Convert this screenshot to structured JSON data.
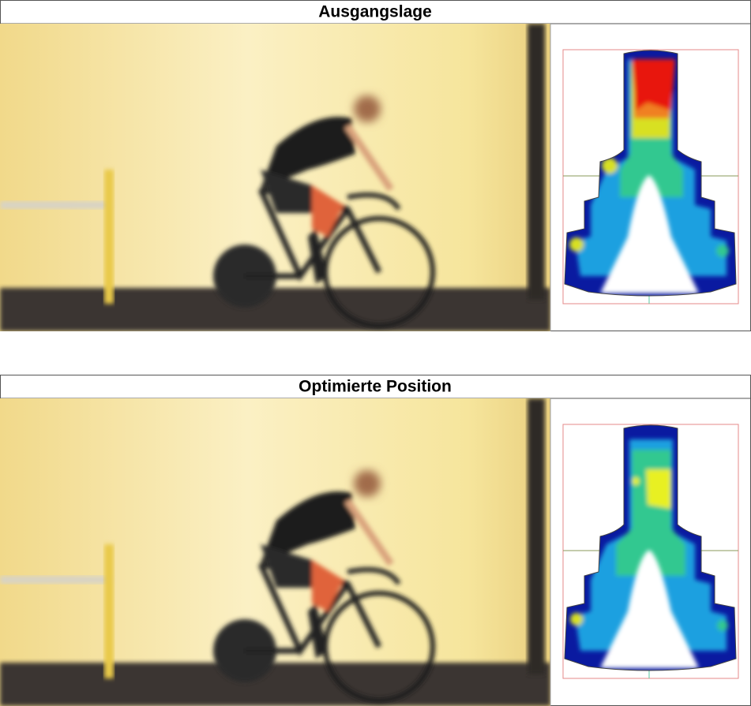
{
  "panels": [
    {
      "title": "Ausgangslage"
    },
    {
      "title": "Optimierte Position"
    }
  ]
}
